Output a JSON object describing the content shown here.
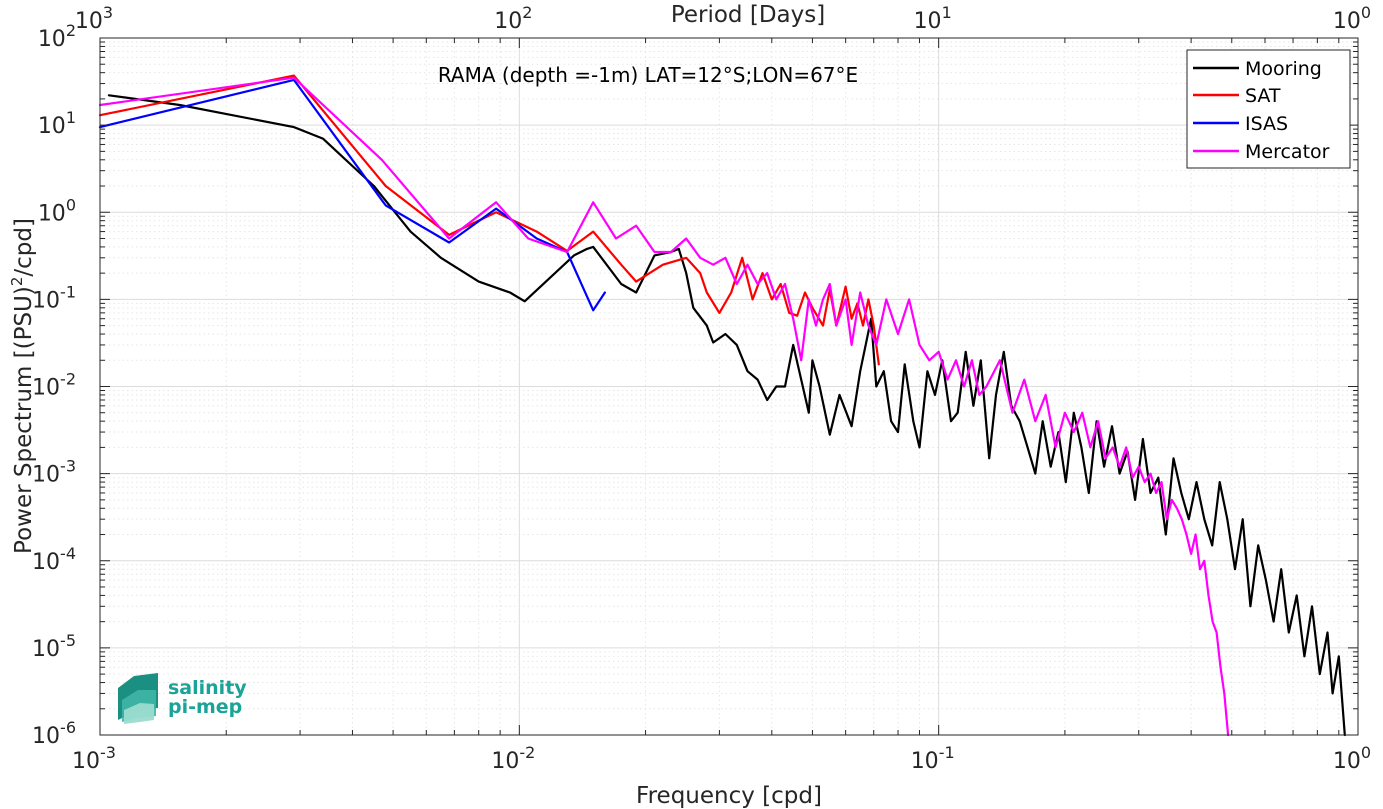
{
  "chart_data": {
    "type": "line",
    "title": "RAMA (depth =-1m) LAT=12°S;LON=67°E",
    "xlabel": "Frequency [cpd]",
    "ylabel": "Power Spectrum [(PSU)",
    "ylabel_sup": "2",
    "ylabel_tail": "/cpd]",
    "top_xlabel": "Period [Days]",
    "x_scale": "log",
    "y_scale": "log",
    "xlim": [
      0.001,
      1
    ],
    "ylim": [
      1e-06,
      100
    ],
    "grid": true,
    "legend_position": "top-right",
    "x_ticks": [
      {
        "base": "10",
        "exp": "-3"
      },
      {
        "base": "10",
        "exp": "-2"
      },
      {
        "base": "10",
        "exp": "-1"
      },
      {
        "base": "10",
        "exp": "0"
      }
    ],
    "top_ticks": [
      {
        "base": "10",
        "exp": "3"
      },
      {
        "base": "10",
        "exp": "2"
      },
      {
        "base": "10",
        "exp": "1"
      },
      {
        "base": "10",
        "exp": "0"
      }
    ],
    "y_ticks": [
      {
        "base": "10",
        "exp": "-6"
      },
      {
        "base": "10",
        "exp": "-5"
      },
      {
        "base": "10",
        "exp": "-4"
      },
      {
        "base": "10",
        "exp": "-3"
      },
      {
        "base": "10",
        "exp": "-2"
      },
      {
        "base": "10",
        "exp": "-1"
      },
      {
        "base": "10",
        "exp": "0"
      },
      {
        "base": "10",
        "exp": "1"
      },
      {
        "base": "10",
        "exp": "2"
      }
    ],
    "series": [
      {
        "name": "Mooring",
        "color": "#000000",
        "points": [
          [
            0.00105,
            22
          ],
          [
            0.00155,
            17
          ],
          [
            0.0029,
            9.5
          ],
          [
            0.0034,
            7
          ],
          [
            0.0045,
            2
          ],
          [
            0.0055,
            0.6
          ],
          [
            0.0065,
            0.3
          ],
          [
            0.008,
            0.16
          ],
          [
            0.0095,
            0.12
          ],
          [
            0.0103,
            0.095
          ],
          [
            0.0135,
            0.32
          ],
          [
            0.0145,
            0.38
          ],
          [
            0.015,
            0.4
          ],
          [
            0.0175,
            0.15
          ],
          [
            0.019,
            0.12
          ],
          [
            0.021,
            0.32
          ],
          [
            0.023,
            0.35
          ],
          [
            0.024,
            0.38
          ],
          [
            0.025,
            0.2
          ],
          [
            0.026,
            0.08
          ],
          [
            0.028,
            0.05
          ],
          [
            0.029,
            0.032
          ],
          [
            0.031,
            0.04
          ],
          [
            0.033,
            0.03
          ],
          [
            0.035,
            0.015
          ],
          [
            0.037,
            0.012
          ],
          [
            0.039,
            0.007
          ],
          [
            0.041,
            0.01
          ],
          [
            0.043,
            0.01
          ],
          [
            0.045,
            0.03
          ],
          [
            0.047,
            0.012
          ],
          [
            0.049,
            0.005
          ],
          [
            0.05,
            0.02
          ],
          [
            0.052,
            0.01
          ],
          [
            0.055,
            0.0028
          ],
          [
            0.058,
            0.008
          ],
          [
            0.062,
            0.0035
          ],
          [
            0.065,
            0.015
          ],
          [
            0.067,
            0.03
          ],
          [
            0.069,
            0.06
          ],
          [
            0.071,
            0.01
          ],
          [
            0.074,
            0.015
          ],
          [
            0.077,
            0.004
          ],
          [
            0.08,
            0.003
          ],
          [
            0.083,
            0.018
          ],
          [
            0.087,
            0.004
          ],
          [
            0.09,
            0.002
          ],
          [
            0.094,
            0.015
          ],
          [
            0.098,
            0.008
          ],
          [
            0.102,
            0.02
          ],
          [
            0.107,
            0.004
          ],
          [
            0.111,
            0.005
          ],
          [
            0.116,
            0.025
          ],
          [
            0.121,
            0.006
          ],
          [
            0.126,
            0.02
          ],
          [
            0.132,
            0.0015
          ],
          [
            0.137,
            0.008
          ],
          [
            0.143,
            0.025
          ],
          [
            0.149,
            0.006
          ],
          [
            0.156,
            0.004
          ],
          [
            0.163,
            0.002
          ],
          [
            0.17,
            0.001
          ],
          [
            0.177,
            0.004
          ],
          [
            0.185,
            0.0012
          ],
          [
            0.193,
            0.003
          ],
          [
            0.201,
            0.0008
          ],
          [
            0.21,
            0.005
          ],
          [
            0.219,
            0.002
          ],
          [
            0.228,
            0.0006
          ],
          [
            0.238,
            0.004
          ],
          [
            0.248,
            0.0012
          ],
          [
            0.259,
            0.0035
          ],
          [
            0.27,
            0.001
          ],
          [
            0.282,
            0.0018
          ],
          [
            0.294,
            0.0005
          ],
          [
            0.307,
            0.0025
          ],
          [
            0.32,
            0.0006
          ],
          [
            0.334,
            0.0009
          ],
          [
            0.348,
            0.0002
          ],
          [
            0.363,
            0.0015
          ],
          [
            0.379,
            0.0006
          ],
          [
            0.395,
            0.0003
          ],
          [
            0.412,
            0.0008
          ],
          [
            0.43,
            0.0003
          ],
          [
            0.449,
            0.00015
          ],
          [
            0.468,
            0.0008
          ],
          [
            0.488,
            0.0003
          ],
          [
            0.509,
            8e-05
          ],
          [
            0.531,
            0.0003
          ],
          [
            0.554,
            3e-05
          ],
          [
            0.578,
            0.00015
          ],
          [
            0.603,
            6e-05
          ],
          [
            0.629,
            2e-05
          ],
          [
            0.656,
            8e-05
          ],
          [
            0.684,
            1.5e-05
          ],
          [
            0.714,
            4e-05
          ],
          [
            0.745,
            8e-06
          ],
          [
            0.777,
            3e-05
          ],
          [
            0.811,
            5e-06
          ],
          [
            0.846,
            1.5e-05
          ],
          [
            0.87,
            3e-06
          ],
          [
            0.9,
            8e-06
          ],
          [
            0.93,
            1e-06
          ]
        ]
      },
      {
        "name": "SAT",
        "color": "#ff0000",
        "points": [
          [
            0.001,
            13
          ],
          [
            0.0029,
            37
          ],
          [
            0.0048,
            2
          ],
          [
            0.0068,
            0.55
          ],
          [
            0.0088,
            1
          ],
          [
            0.011,
            0.6
          ],
          [
            0.013,
            0.36
          ],
          [
            0.015,
            0.6
          ],
          [
            0.0175,
            0.25
          ],
          [
            0.019,
            0.16
          ],
          [
            0.022,
            0.25
          ],
          [
            0.025,
            0.3
          ],
          [
            0.027,
            0.2
          ],
          [
            0.028,
            0.12
          ],
          [
            0.03,
            0.07
          ],
          [
            0.032,
            0.12
          ],
          [
            0.034,
            0.3
          ],
          [
            0.036,
            0.1
          ],
          [
            0.038,
            0.2
          ],
          [
            0.04,
            0.1
          ],
          [
            0.042,
            0.15
          ],
          [
            0.044,
            0.07
          ],
          [
            0.046,
            0.065
          ],
          [
            0.048,
            0.12
          ],
          [
            0.05,
            0.08
          ],
          [
            0.053,
            0.05
          ],
          [
            0.055,
            0.13
          ],
          [
            0.057,
            0.05
          ],
          [
            0.06,
            0.14
          ],
          [
            0.062,
            0.06
          ],
          [
            0.064,
            0.09
          ],
          [
            0.066,
            0.05
          ],
          [
            0.068,
            0.1
          ],
          [
            0.07,
            0.05
          ],
          [
            0.072,
            0.018
          ]
        ]
      },
      {
        "name": "ISAS",
        "color": "#0000ff",
        "points": [
          [
            0.001,
            9.5
          ],
          [
            0.0029,
            33
          ],
          [
            0.0048,
            1.2
          ],
          [
            0.0068,
            0.45
          ],
          [
            0.0088,
            1.1
          ],
          [
            0.011,
            0.5
          ],
          [
            0.013,
            0.35
          ],
          [
            0.015,
            0.075
          ],
          [
            0.016,
            0.12
          ]
        ]
      },
      {
        "name": "Mercator",
        "color": "#ff00ff",
        "points": [
          [
            0.001,
            17
          ],
          [
            0.0029,
            35
          ],
          [
            0.0047,
            4
          ],
          [
            0.0068,
            0.5
          ],
          [
            0.0088,
            1.3
          ],
          [
            0.0105,
            0.5
          ],
          [
            0.013,
            0.35
          ],
          [
            0.015,
            1.3
          ],
          [
            0.017,
            0.5
          ],
          [
            0.019,
            0.7
          ],
          [
            0.021,
            0.35
          ],
          [
            0.023,
            0.35
          ],
          [
            0.025,
            0.5
          ],
          [
            0.027,
            0.3
          ],
          [
            0.029,
            0.25
          ],
          [
            0.031,
            0.3
          ],
          [
            0.033,
            0.15
          ],
          [
            0.035,
            0.25
          ],
          [
            0.037,
            0.15
          ],
          [
            0.039,
            0.2
          ],
          [
            0.041,
            0.1
          ],
          [
            0.043,
            0.15
          ],
          [
            0.045,
            0.06
          ],
          [
            0.047,
            0.02
          ],
          [
            0.049,
            0.1
          ],
          [
            0.051,
            0.05
          ],
          [
            0.053,
            0.1
          ],
          [
            0.055,
            0.15
          ],
          [
            0.057,
            0.05
          ],
          [
            0.06,
            0.1
          ],
          [
            0.062,
            0.03
          ],
          [
            0.065,
            0.12
          ],
          [
            0.068,
            0.05
          ],
          [
            0.071,
            0.03
          ],
          [
            0.075,
            0.1
          ],
          [
            0.08,
            0.04
          ],
          [
            0.085,
            0.1
          ],
          [
            0.09,
            0.03
          ],
          [
            0.095,
            0.02
          ],
          [
            0.1,
            0.025
          ],
          [
            0.105,
            0.012
          ],
          [
            0.11,
            0.02
          ],
          [
            0.115,
            0.01
          ],
          [
            0.12,
            0.02
          ],
          [
            0.125,
            0.008
          ],
          [
            0.13,
            0.01
          ],
          [
            0.14,
            0.02
          ],
          [
            0.15,
            0.005
          ],
          [
            0.16,
            0.012
          ],
          [
            0.17,
            0.004
          ],
          [
            0.18,
            0.008
          ],
          [
            0.19,
            0.002
          ],
          [
            0.2,
            0.005
          ],
          [
            0.21,
            0.003
          ],
          [
            0.22,
            0.005
          ],
          [
            0.23,
            0.002
          ],
          [
            0.24,
            0.004
          ],
          [
            0.25,
            0.0015
          ],
          [
            0.26,
            0.002
          ],
          [
            0.27,
            0.0012
          ],
          [
            0.28,
            0.002
          ],
          [
            0.29,
            0.0009
          ],
          [
            0.3,
            0.0012
          ],
          [
            0.31,
            0.0008
          ],
          [
            0.32,
            0.001
          ],
          [
            0.33,
            0.0006
          ],
          [
            0.34,
            0.0008
          ],
          [
            0.35,
            0.0003
          ],
          [
            0.36,
            0.0005
          ],
          [
            0.37,
            0.0004
          ],
          [
            0.38,
            0.0003
          ],
          [
            0.39,
            0.0002
          ],
          [
            0.4,
            0.00012
          ],
          [
            0.41,
            0.0002
          ],
          [
            0.42,
            8e-05
          ],
          [
            0.43,
            0.0001
          ],
          [
            0.44,
            4e-05
          ],
          [
            0.45,
            2e-05
          ],
          [
            0.46,
            1.5e-05
          ],
          [
            0.47,
            6e-06
          ],
          [
            0.48,
            3e-06
          ],
          [
            0.49,
            1e-06
          ]
        ]
      }
    ]
  },
  "logo": {
    "line1": "salinity",
    "line2": "pi-mep",
    "color": "#1aa397"
  }
}
